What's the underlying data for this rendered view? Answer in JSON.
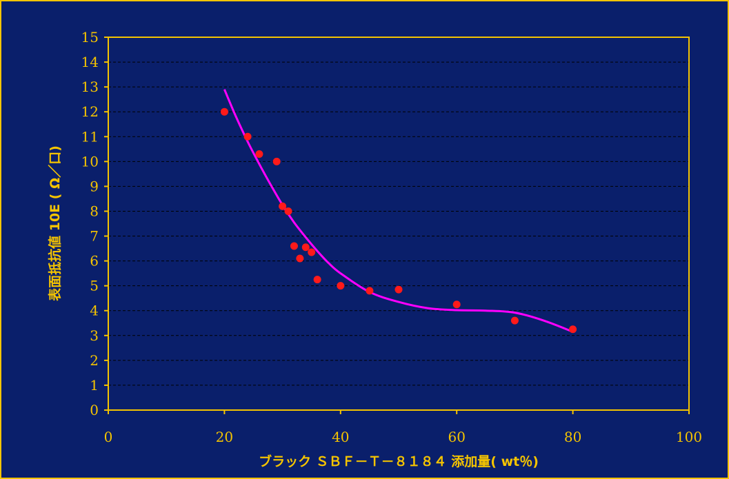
{
  "chart_data": {
    "type": "scatter",
    "title": "",
    "xlabel": "ブラック ＳＢＦ－Ｔ－８１８４ 添加量( wt％)",
    "ylabel": "表面抵抗値 10E ( Ω／口)",
    "xlim": [
      0,
      100
    ],
    "ylim": [
      0,
      15
    ],
    "xticks": [
      0,
      20,
      40,
      60,
      80,
      100
    ],
    "yticks": [
      0,
      1,
      2,
      3,
      4,
      5,
      6,
      7,
      8,
      9,
      10,
      11,
      12,
      13,
      14,
      15
    ],
    "grid": "horizontal dashed",
    "legend": "none",
    "series": [
      {
        "kind": "points",
        "color": "#ff1a1a",
        "points": [
          [
            20,
            12.0
          ],
          [
            24,
            11.0
          ],
          [
            26,
            10.3
          ],
          [
            29,
            10.0
          ],
          [
            30,
            8.2
          ],
          [
            31,
            8.0
          ],
          [
            32,
            6.6
          ],
          [
            33,
            6.1
          ],
          [
            34,
            6.55
          ],
          [
            35,
            6.35
          ],
          [
            36,
            5.25
          ],
          [
            40,
            5.0
          ],
          [
            45,
            4.8
          ],
          [
            50,
            4.85
          ],
          [
            60,
            4.25
          ],
          [
            70,
            3.6
          ],
          [
            80,
            3.25
          ]
        ]
      },
      {
        "kind": "curve",
        "color": "#ff00ff",
        "points": [
          [
            20,
            12.9
          ],
          [
            22,
            11.8
          ],
          [
            24,
            10.8
          ],
          [
            26,
            9.9
          ],
          [
            28,
            9.05
          ],
          [
            30,
            8.25
          ],
          [
            32,
            7.55
          ],
          [
            34,
            6.95
          ],
          [
            36,
            6.4
          ],
          [
            38,
            5.9
          ],
          [
            40,
            5.5
          ],
          [
            45,
            4.75
          ],
          [
            50,
            4.35
          ],
          [
            55,
            4.1
          ],
          [
            60,
            4.02
          ],
          [
            65,
            4.0
          ],
          [
            70,
            3.92
          ],
          [
            75,
            3.6
          ],
          [
            80,
            3.15
          ]
        ]
      }
    ]
  },
  "colors": {
    "background": "#0a1f6b",
    "accent": "#f5c400",
    "points": "#ff1a1a",
    "curve": "#ff00ff"
  }
}
